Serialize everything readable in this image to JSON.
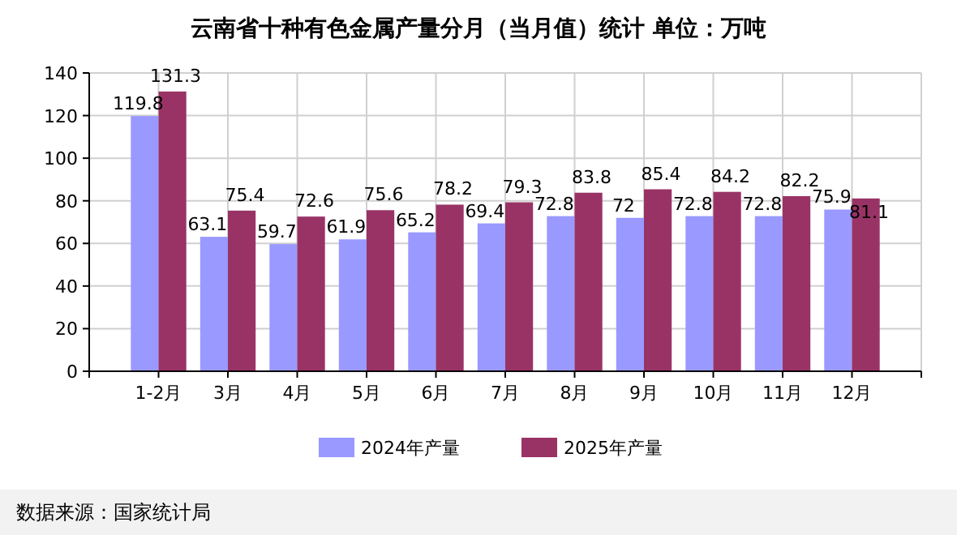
{
  "chart_data": {
    "type": "bar",
    "title": "云南省十种有色金属产量分月（当月值）统计  单位：万吨",
    "categories": [
      "1-2月",
      "3月",
      "4月",
      "5月",
      "6月",
      "7月",
      "8月",
      "9月",
      "10月",
      "11月",
      "12月"
    ],
    "series": [
      {
        "name": "2024年产量",
        "color": "#9999ff",
        "values": [
          119.8,
          63.1,
          59.7,
          61.9,
          65.2,
          69.4,
          72.8,
          72,
          72.8,
          72.8,
          75.9
        ]
      },
      {
        "name": "2025年产量",
        "color": "#993366",
        "values": [
          131.3,
          75.4,
          72.6,
          75.6,
          78.2,
          79.3,
          83.8,
          85.4,
          84.2,
          82.2,
          81.1
        ]
      }
    ],
    "ylim": [
      0,
      140
    ],
    "yticks": [
      0,
      20,
      40,
      60,
      80,
      100,
      120,
      140
    ],
    "grid": true,
    "legend": "bottom",
    "data_labels": true,
    "annotations": [
      "数据来源：国家统计局"
    ]
  }
}
